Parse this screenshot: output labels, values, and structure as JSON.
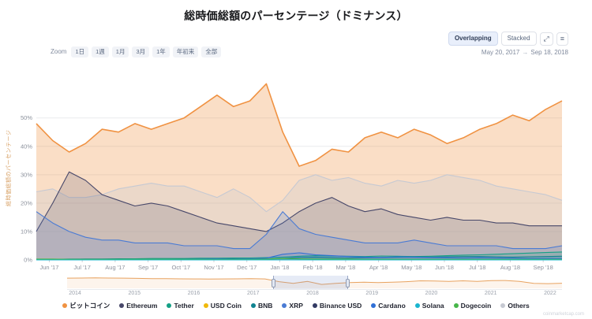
{
  "title": "総時価総額のパーセンテージ（ドミナンス）",
  "toolbar": {
    "overlapping_label": "Overlapping",
    "stacked_label": "Stacked",
    "fullscreen_icon": "⤢",
    "menu_icon": "≡"
  },
  "range": {
    "start": "May 20, 2017",
    "arrow": "→",
    "end": "Sep 18, 2018"
  },
  "zoom": {
    "label": "Zoom",
    "options": [
      "1日",
      "1週",
      "1月",
      "3月",
      "1年",
      "年初来",
      "全部"
    ]
  },
  "watermark": "coinmarketcap.com",
  "chart_data": {
    "type": "area",
    "mode": "overlapping",
    "title": "総時価総額のパーセンテージ（ドミナンス）",
    "ylabel": "総時価総額のパーセンテージ",
    "ylim": [
      0,
      66
    ],
    "yticks": [
      "0%",
      "10%",
      "20%",
      "30%",
      "40%",
      "50%"
    ],
    "x_range": [
      "May 20, 2017",
      "Sep 18, 2018"
    ],
    "x_tick_labels": [
      "Jun '17",
      "Jul '17",
      "Aug '17",
      "Sep '17",
      "Oct '17",
      "Nov '17",
      "Dec '17",
      "Jan '18",
      "Feb '18",
      "Mar '18",
      "Apr '18",
      "May '18",
      "Jun '18",
      "Jul '18",
      "Aug '18",
      "Sep '18"
    ],
    "grid": true,
    "legend_position": "bottom",
    "series": [
      {
        "name": "ビットコイン",
        "color": "#f09242",
        "values": [
          48,
          42,
          38,
          41,
          46,
          45,
          48,
          46,
          48,
          50,
          54,
          58,
          54,
          56,
          62,
          45,
          33,
          35,
          39,
          38,
          43,
          45,
          43,
          46,
          44,
          41,
          43,
          46,
          48,
          51,
          49,
          53,
          56
        ]
      },
      {
        "name": "Ethereum",
        "color": "#474769",
        "values": [
          10,
          20,
          31,
          28,
          23,
          21,
          19,
          20,
          19,
          17,
          15,
          13,
          12,
          11,
          10,
          13,
          17,
          20,
          22,
          19,
          17,
          18,
          16,
          15,
          14,
          15,
          14,
          14,
          13,
          13,
          12,
          12,
          12
        ]
      },
      {
        "name": "Tether",
        "color": "#14a085",
        "values": [
          0.2,
          0.2,
          0.3,
          0.3,
          0.3,
          0.4,
          0.4,
          0.5,
          0.5,
          0.5,
          0.6,
          0.6,
          0.7,
          0.7,
          0.8,
          1.0,
          1.3,
          1.5,
          1.4,
          1.3,
          1.2,
          1.4,
          1.3,
          1.2,
          1.3,
          1.5,
          1.7,
          1.8,
          2.0,
          2.2,
          2.4,
          2.6,
          2.8
        ]
      },
      {
        "name": "USD Coin",
        "color": "#f0b90b",
        "values": [
          0,
          0,
          0,
          0,
          0,
          0,
          0,
          0,
          0,
          0,
          0,
          0,
          0,
          0,
          0,
          0,
          0,
          0,
          0,
          0,
          0,
          0,
          0,
          0,
          0,
          0,
          0,
          0,
          0,
          0,
          0,
          0,
          0
        ]
      },
      {
        "name": "BNB",
        "color": "#0f8390",
        "values": [
          0.1,
          0.1,
          0.2,
          0.3,
          0.3,
          0.3,
          0.2,
          0.2,
          0.2,
          0.3,
          0.3,
          0.4,
          0.4,
          0.3,
          0.3,
          0.5,
          0.9,
          1.0,
          0.8,
          0.7,
          0.8,
          0.9,
          1.0,
          1.1,
          1.0,
          1.1,
          1.2,
          1.2,
          1.1,
          1.0,
          1.1,
          1.2,
          1.3
        ]
      },
      {
        "name": "XRP",
        "color": "#4a7bd4",
        "values": [
          17,
          13,
          10,
          8,
          7,
          7,
          6,
          6,
          6,
          5,
          5,
          5,
          4,
          4,
          9,
          17,
          11,
          9,
          8,
          7,
          6,
          6,
          6,
          7,
          6,
          5,
          5,
          5,
          5,
          4,
          4,
          4,
          5
        ]
      },
      {
        "name": "Binance USD",
        "color": "#323a63",
        "values": [
          0,
          0,
          0,
          0,
          0,
          0,
          0,
          0,
          0,
          0,
          0,
          0,
          0,
          0,
          0,
          0,
          0,
          0,
          0,
          0,
          0,
          0,
          0,
          0,
          0,
          0,
          0,
          0,
          0,
          0,
          0,
          0,
          0
        ]
      },
      {
        "name": "Cardano",
        "color": "#2f6fd6",
        "values": [
          0,
          0,
          0,
          0,
          0,
          0,
          0,
          0,
          0,
          0.2,
          0.3,
          0.4,
          0.3,
          0.4,
          0.6,
          2.0,
          2.5,
          1.8,
          1.5,
          1.2,
          1.0,
          0.9,
          1.1,
          1.0,
          0.9,
          0.8,
          0.7,
          0.8,
          0.7,
          0.6,
          0.5,
          0.5,
          0.5
        ]
      },
      {
        "name": "Solana",
        "color": "#1ab5cf",
        "values": [
          0,
          0,
          0,
          0,
          0,
          0,
          0,
          0,
          0,
          0,
          0,
          0,
          0,
          0,
          0,
          0,
          0,
          0,
          0,
          0,
          0,
          0,
          0,
          0,
          0,
          0,
          0,
          0,
          0,
          0,
          0,
          0,
          0
        ]
      },
      {
        "name": "Dogecoin",
        "color": "#47b649",
        "values": [
          0.3,
          0.3,
          0.2,
          0.2,
          0.2,
          0.2,
          0.2,
          0.2,
          0.2,
          0.2,
          0.2,
          0.2,
          0.2,
          0.2,
          0.3,
          0.5,
          0.4,
          0.3,
          0.3,
          0.3,
          0.2,
          0.2,
          0.2,
          0.2,
          0.2,
          0.2,
          0.2,
          0.2,
          0.2,
          0.2,
          0.2,
          0.2,
          0.2
        ]
      },
      {
        "name": "Others",
        "color": "#c6c9d2",
        "values": [
          24,
          25,
          22,
          22,
          23,
          25,
          26,
          27,
          26,
          26,
          24,
          22,
          25,
          22,
          17,
          21,
          28,
          30,
          28,
          29,
          27,
          26,
          28,
          27,
          28,
          30,
          29,
          28,
          26,
          25,
          24,
          23,
          21
        ]
      }
    ]
  },
  "navigator": {
    "years": [
      "2014",
      "2015",
      "2016",
      "2017",
      "2018",
      "2019",
      "2020",
      "2021",
      "2022"
    ],
    "values": [
      92,
      93,
      94,
      93,
      92,
      90,
      88,
      87,
      86,
      85,
      84,
      85,
      86,
      87,
      85,
      60,
      45,
      62,
      35,
      45,
      52,
      56,
      52,
      55,
      60,
      68,
      66,
      63,
      68,
      62,
      70,
      71,
      62,
      45,
      42,
      46
    ],
    "selection": {
      "left_pct": 41.6,
      "width_pct": 15.2
    }
  }
}
